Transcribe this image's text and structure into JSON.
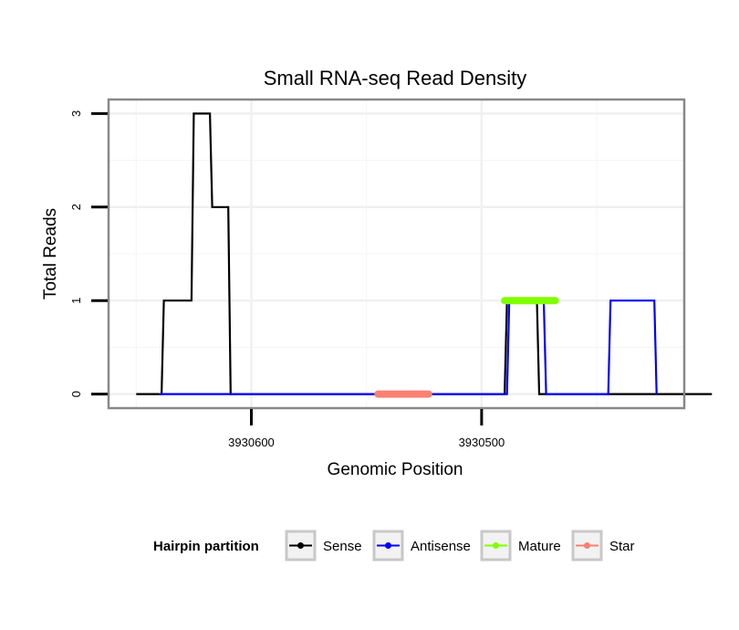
{
  "chart_data": {
    "type": "line",
    "title": "Small RNA-seq Read Density",
    "xlabel": "Genomic Position",
    "ylabel": "Total Reads",
    "x_reversed": true,
    "xlim": [
      3930662,
      3930412
    ],
    "ylim": [
      -0.15,
      3.15
    ],
    "x_ticks": [
      {
        "value": 3930600,
        "label": "3930600"
      },
      {
        "value": 3930500,
        "label": "3930500"
      }
    ],
    "x_minor_gridlines": [
      3930650,
      3930550,
      3930450
    ],
    "y_ticks": [
      {
        "value": 0,
        "label": "0"
      },
      {
        "value": 1,
        "label": "1"
      },
      {
        "value": 2,
        "label": "2"
      },
      {
        "value": 3,
        "label": "3"
      }
    ],
    "y_minor_gridlines": [
      0.5,
      1.5,
      2.5
    ],
    "grid": true,
    "legend": {
      "title": "Hairpin partition",
      "position": "bottom",
      "entries": [
        "Sense",
        "Antisense",
        "Mature",
        "Star"
      ]
    },
    "series": [
      {
        "name": "Sense",
        "color": "#000000",
        "x": [
          3930650,
          3930639,
          3930638,
          3930626,
          3930625,
          3930618,
          3930617,
          3930610,
          3930609,
          3930602,
          3930601,
          3930490,
          3930489,
          3930476,
          3930475,
          3930400
        ],
        "y": [
          0,
          0,
          1,
          1,
          3,
          3,
          2,
          2,
          0,
          0,
          0,
          0,
          1,
          1,
          0,
          0
        ]
      },
      {
        "name": "Antisense",
        "color": "#0000ff",
        "x": [
          3930640,
          3930602,
          3930489,
          3930488,
          3930473,
          3930472,
          3930445,
          3930444,
          3930425,
          3930424
        ],
        "y": [
          0,
          0,
          0,
          1,
          1,
          0,
          0,
          1,
          1,
          0
        ]
      },
      {
        "name": "Mature",
        "color": "#80ff00",
        "x": [
          3930490,
          3930468
        ],
        "y": [
          1,
          1
        ]
      },
      {
        "name": "Star",
        "color": "#fa8072",
        "x": [
          3930545,
          3930523
        ],
        "y": [
          0,
          0
        ]
      }
    ]
  }
}
